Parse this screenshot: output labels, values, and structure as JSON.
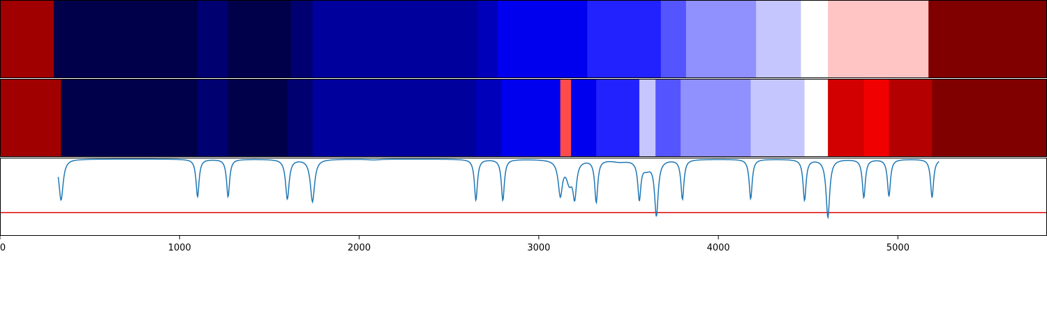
{
  "chart_data": [
    {
      "type": "heatmap",
      "panel": "top-strip",
      "colormap": "seismic",
      "xlim": [
        0,
        5830
      ],
      "segments": [
        {
          "start": 0,
          "end": 300,
          "color": "#a00000"
        },
        {
          "start": 300,
          "end": 1100,
          "color": "#00004a"
        },
        {
          "start": 1100,
          "end": 1270,
          "color": "#000070"
        },
        {
          "start": 1270,
          "end": 1620,
          "color": "#00004a"
        },
        {
          "start": 1620,
          "end": 1740,
          "color": "#000070"
        },
        {
          "start": 1740,
          "end": 2660,
          "color": "#00009c"
        },
        {
          "start": 2660,
          "end": 2770,
          "color": "#0000bb"
        },
        {
          "start": 2770,
          "end": 3270,
          "color": "#0000ee"
        },
        {
          "start": 3270,
          "end": 3680,
          "color": "#2222ff"
        },
        {
          "start": 3680,
          "end": 3820,
          "color": "#5555ff"
        },
        {
          "start": 3820,
          "end": 4210,
          "color": "#9090ff"
        },
        {
          "start": 4210,
          "end": 4460,
          "color": "#c6c6ff"
        },
        {
          "start": 4460,
          "end": 4610,
          "color": "#ffffff"
        },
        {
          "start": 4610,
          "end": 5170,
          "color": "#ffc4c4"
        },
        {
          "start": 5170,
          "end": 5830,
          "color": "#800000"
        }
      ]
    },
    {
      "type": "heatmap",
      "panel": "middle-strip",
      "colormap": "seismic",
      "xlim": [
        0,
        5830
      ],
      "segments": [
        {
          "start": 0,
          "end": 340,
          "color": "#a00000"
        },
        {
          "start": 340,
          "end": 1100,
          "color": "#00004a"
        },
        {
          "start": 1100,
          "end": 1270,
          "color": "#000070"
        },
        {
          "start": 1270,
          "end": 1600,
          "color": "#00004a"
        },
        {
          "start": 1600,
          "end": 1740,
          "color": "#000070"
        },
        {
          "start": 1740,
          "end": 2650,
          "color": "#00009c"
        },
        {
          "start": 2650,
          "end": 2790,
          "color": "#0000bb"
        },
        {
          "start": 2790,
          "end": 3120,
          "color": "#0000ee"
        },
        {
          "start": 3120,
          "end": 3180,
          "color": "#ff4a4a"
        },
        {
          "start": 3180,
          "end": 3320,
          "color": "#0000ee"
        },
        {
          "start": 3320,
          "end": 3560,
          "color": "#2222ff"
        },
        {
          "start": 3560,
          "end": 3650,
          "color": "#c6c6ff"
        },
        {
          "start": 3650,
          "end": 3790,
          "color": "#5555ff"
        },
        {
          "start": 3790,
          "end": 4180,
          "color": "#9090ff"
        },
        {
          "start": 4180,
          "end": 4480,
          "color": "#c6c6ff"
        },
        {
          "start": 4480,
          "end": 4610,
          "color": "#ffffff"
        },
        {
          "start": 4610,
          "end": 4810,
          "color": "#d20000"
        },
        {
          "start": 4810,
          "end": 4950,
          "color": "#f00000"
        },
        {
          "start": 4950,
          "end": 5190,
          "color": "#b40000"
        },
        {
          "start": 5190,
          "end": 5830,
          "color": "#800000"
        }
      ]
    },
    {
      "type": "line",
      "panel": "bottom-plot",
      "xlim": [
        0,
        5830
      ],
      "ylim": [
        -1.12,
        0.02
      ],
      "baseline": 0,
      "line_color": "#1f77b4",
      "dips": [
        {
          "x": 340,
          "depth": 0.6,
          "width": 14
        },
        {
          "x": 1100,
          "depth": 0.55,
          "width": 10
        },
        {
          "x": 1270,
          "depth": 0.55,
          "width": 10
        },
        {
          "x": 1600,
          "depth": 0.58,
          "width": 12
        },
        {
          "x": 1740,
          "depth": 0.62,
          "width": 14
        },
        {
          "x": 2080,
          "depth": 0.01,
          "width": 40
        },
        {
          "x": 2650,
          "depth": 0.6,
          "width": 10
        },
        {
          "x": 2800,
          "depth": 0.6,
          "width": 10
        },
        {
          "x": 3120,
          "depth": 0.5,
          "width": 14
        },
        {
          "x": 3170,
          "depth": 0.3,
          "width": 20
        },
        {
          "x": 3200,
          "depth": 0.5,
          "width": 12
        },
        {
          "x": 3320,
          "depth": 0.62,
          "width": 10
        },
        {
          "x": 3450,
          "depth": 0.03,
          "width": 50
        },
        {
          "x": 3560,
          "depth": 0.55,
          "width": 10
        },
        {
          "x": 3600,
          "depth": 0.12,
          "width": 30
        },
        {
          "x": 3655,
          "depth": 0.8,
          "width": 12
        },
        {
          "x": 3800,
          "depth": 0.58,
          "width": 10
        },
        {
          "x": 4180,
          "depth": 0.58,
          "width": 10
        },
        {
          "x": 4480,
          "depth": 0.6,
          "width": 10
        },
        {
          "x": 4610,
          "depth": 0.85,
          "width": 12
        },
        {
          "x": 4810,
          "depth": 0.56,
          "width": 10
        },
        {
          "x": 4950,
          "depth": 0.54,
          "width": 10
        },
        {
          "x": 5190,
          "depth": 0.56,
          "width": 10
        }
      ],
      "threshold": {
        "y": -0.78,
        "color": "#e00000"
      }
    }
  ],
  "xaxis": {
    "ticks": [
      0,
      1000,
      2000,
      3000,
      4000,
      5000
    ],
    "tick_labels": [
      "0",
      "1000",
      "2000",
      "3000",
      "4000",
      "5000"
    ]
  }
}
